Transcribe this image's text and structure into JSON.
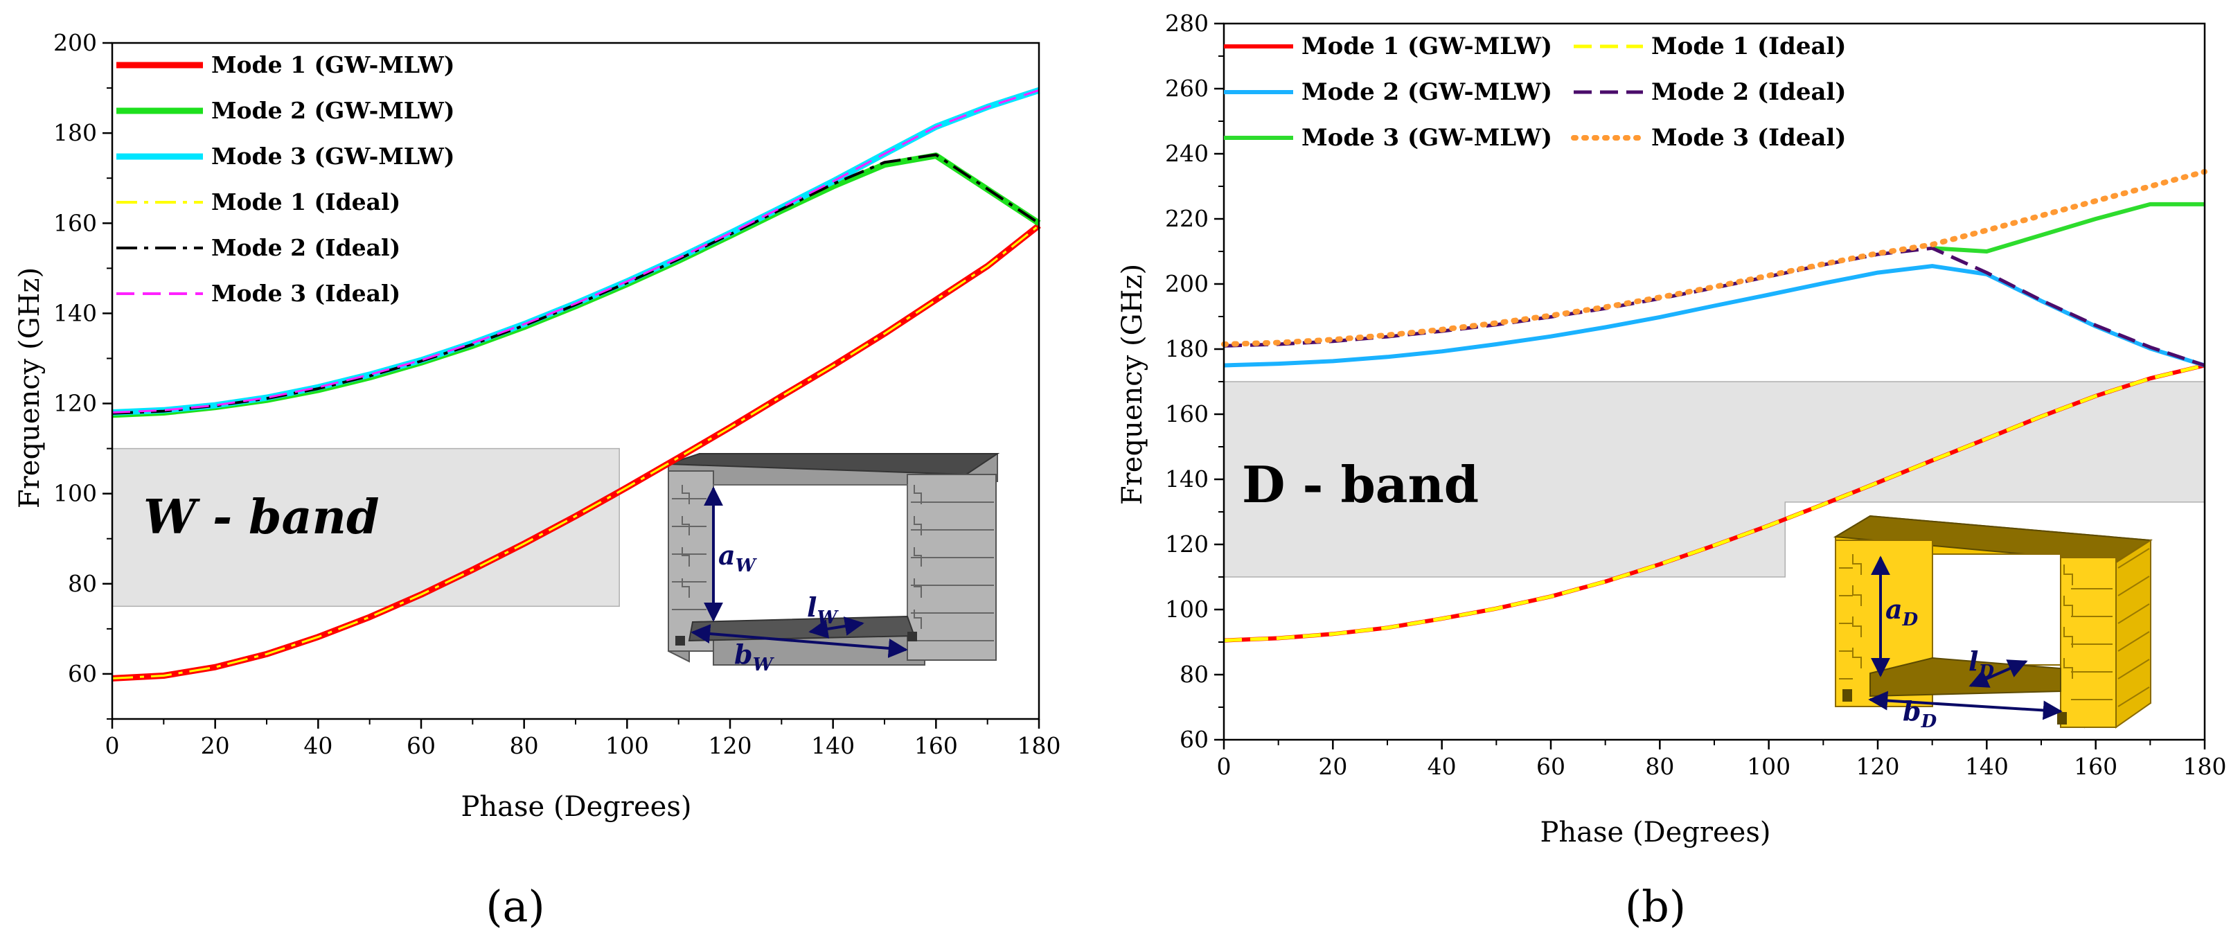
{
  "chart_data": [
    {
      "type": "line",
      "panel_label": "(a)",
      "xlabel": "Phase (Degrees)",
      "ylabel": "Frequency (GHz)",
      "xlim": [
        0,
        180
      ],
      "ylim": [
        50,
        200
      ],
      "xticks": [
        0,
        20,
        40,
        60,
        80,
        100,
        120,
        140,
        160,
        180
      ],
      "yticks": [
        60,
        80,
        100,
        120,
        140,
        160,
        180,
        200
      ],
      "xtick_labels": [
        "0",
        "20",
        "40",
        "60",
        "80",
        "100",
        "120",
        "140",
        "160",
        "180"
      ],
      "ytick_labels": [
        "60",
        "80",
        "100",
        "120",
        "140",
        "160",
        "180",
        "200"
      ],
      "band": {
        "label": "W - band",
        "x_range": [
          0,
          98.5
        ],
        "y_range": [
          75,
          110
        ]
      },
      "legend": {
        "placement": "top-left",
        "columns": 1
      },
      "series": [
        {
          "name": "Mode 1 (GW-MLW)",
          "color": "#ff0000",
          "style": "solid",
          "width": 9,
          "x": [
            0,
            10,
            20,
            30,
            40,
            50,
            60,
            70,
            80,
            90,
            100,
            110,
            120,
            130,
            140,
            150,
            160,
            170,
            180
          ],
          "y": [
            59,
            59.6,
            61.5,
            64.4,
            68.2,
            72.6,
            77.6,
            83.1,
            88.9,
            95.0,
            101.4,
            108,
            114.7,
            121.6,
            128.4,
            135.5,
            143,
            150.5,
            159.5
          ]
        },
        {
          "name": "Mode 2 (GW-MLW)",
          "color": "#1de01d",
          "style": "solid",
          "width": 9,
          "x": [
            0,
            10,
            20,
            30,
            40,
            50,
            60,
            70,
            80,
            90,
            100,
            110,
            120,
            130,
            140,
            150,
            160,
            170,
            180
          ],
          "y": [
            117.5,
            118,
            119.2,
            120.8,
            123,
            125.8,
            129.1,
            132.8,
            137,
            141.6,
            146.5,
            151.7,
            157.2,
            162.8,
            168.2,
            173,
            175,
            167.5,
            160
          ]
        },
        {
          "name": "Mode 3 (GW-MLW)",
          "color": "#00e5ff",
          "style": "solid",
          "width": 9,
          "x": [
            0,
            10,
            20,
            30,
            40,
            50,
            60,
            70,
            80,
            90,
            100,
            110,
            120,
            130,
            140,
            150,
            160,
            170,
            180
          ],
          "y": [
            118,
            118.5,
            119.6,
            121.3,
            123.6,
            126.4,
            129.6,
            133.4,
            137.6,
            142.2,
            147.1,
            152.3,
            157.8,
            163.5,
            169.3,
            175.4,
            181.4,
            185.8,
            189.5
          ]
        },
        {
          "name": "Mode 1 (Ideal)",
          "color": "#ffff00",
          "style": "dashdot",
          "width": 3,
          "x": [
            0,
            10,
            20,
            30,
            40,
            50,
            60,
            70,
            80,
            90,
            100,
            110,
            120,
            130,
            140,
            150,
            160,
            170,
            180
          ],
          "y": [
            59,
            59.6,
            61.5,
            64.4,
            68.2,
            72.6,
            77.6,
            83.1,
            88.9,
            95.0,
            101.4,
            108,
            114.7,
            121.6,
            128.4,
            135.5,
            143,
            150.5,
            159.5
          ]
        },
        {
          "name": "Mode 2 (Ideal)",
          "color": "#000000",
          "style": "dashdot",
          "width": 4,
          "x": [
            0,
            10,
            20,
            30,
            40,
            50,
            60,
            70,
            80,
            90,
            100,
            110,
            120,
            130,
            140,
            150,
            160,
            170,
            180
          ],
          "y": [
            117.8,
            118.3,
            119.5,
            121.1,
            123.3,
            126.1,
            129.4,
            133.1,
            137.3,
            141.9,
            146.8,
            152,
            157.5,
            163.1,
            168.7,
            173.5,
            175.2,
            167.6,
            160
          ]
        },
        {
          "name": "Mode 3 (Ideal)",
          "color": "#ff22ff",
          "style": "dash",
          "width": 3,
          "x": [
            0,
            10,
            20,
            30,
            40,
            50,
            60,
            70,
            80,
            90,
            100,
            110,
            120,
            130,
            140,
            150,
            160,
            170,
            180
          ],
          "y": [
            118,
            118.5,
            119.6,
            121.3,
            123.6,
            126.4,
            129.6,
            133.4,
            137.6,
            142.2,
            147.1,
            152.3,
            157.8,
            163.5,
            169.3,
            175.4,
            181.4,
            185.8,
            189.5
          ]
        }
      ],
      "inset": {
        "dims": [
          "a",
          "b",
          "l"
        ],
        "subscript": "W"
      }
    },
    {
      "type": "line",
      "panel_label": "(b)",
      "xlabel": "Phase (Degrees)",
      "ylabel": "Frequency (GHz)",
      "xlim": [
        0,
        180
      ],
      "ylim": [
        60,
        280
      ],
      "xticks": [
        0,
        20,
        40,
        60,
        80,
        100,
        120,
        140,
        160,
        180
      ],
      "yticks": [
        60,
        80,
        100,
        120,
        140,
        160,
        180,
        200,
        220,
        240,
        260,
        280
      ],
      "xtick_labels": [
        "0",
        "20",
        "40",
        "60",
        "80",
        "100",
        "120",
        "140",
        "160",
        "180"
      ],
      "ytick_labels": [
        "60",
        "80",
        "100",
        "120",
        "140",
        "160",
        "180",
        "200",
        "220",
        "240",
        "260",
        "280"
      ],
      "band": {
        "label": "D - band",
        "x_range": [
          0,
          180
        ],
        "y_range": [
          110,
          170
        ]
      },
      "legend": {
        "placement": "top-left",
        "columns": 2
      },
      "series": [
        {
          "name": "Mode 1 (GW-MLW)",
          "color": "#ff0000",
          "style": "solid",
          "width": 6,
          "x": [
            0,
            10,
            20,
            30,
            40,
            50,
            60,
            70,
            80,
            90,
            100,
            110,
            120,
            130,
            140,
            150,
            160,
            170,
            180
          ],
          "y": [
            90.5,
            91.2,
            92.5,
            94.4,
            97.2,
            100.3,
            104,
            108.6,
            113.9,
            119.7,
            125.8,
            132.3,
            139,
            145.8,
            152.5,
            159.3,
            165.6,
            171,
            175
          ]
        },
        {
          "name": "Mode 2 (GW-MLW)",
          "color": "#1ab2ff",
          "style": "solid",
          "width": 6,
          "x": [
            0,
            10,
            20,
            30,
            40,
            50,
            60,
            70,
            80,
            90,
            100,
            110,
            120,
            130,
            140,
            150,
            160,
            170,
            180
          ],
          "y": [
            175,
            175.5,
            176.3,
            177.6,
            179.3,
            181.5,
            183.9,
            186.7,
            189.8,
            193.3,
            196.7,
            200.2,
            203.5,
            205.5,
            203,
            194.8,
            187,
            180.2,
            175
          ]
        },
        {
          "name": "Mode 3 (GW-MLW)",
          "color": "#2ddc2d",
          "style": "solid",
          "width": 6,
          "x": [
            130,
            140,
            150,
            160,
            170,
            180
          ],
          "y": [
            211,
            210,
            215,
            220,
            224.5,
            224.5
          ]
        },
        {
          "name": "Mode 1 (Ideal)",
          "color": "#ffff00",
          "style": "dash",
          "width": 5,
          "x": [
            0,
            10,
            20,
            30,
            40,
            50,
            60,
            70,
            80,
            90,
            100,
            110,
            120,
            130,
            140,
            150,
            160,
            170,
            180
          ],
          "y": [
            90.5,
            91.2,
            92.5,
            94.4,
            97.2,
            100.3,
            104,
            108.6,
            113.9,
            119.7,
            125.8,
            132.3,
            139,
            145.8,
            152.5,
            159.3,
            165.6,
            171,
            175
          ]
        },
        {
          "name": "Mode 2 (Ideal)",
          "color": "#4b0c6b",
          "style": "dash",
          "width": 5,
          "x": [
            0,
            10,
            20,
            30,
            40,
            50,
            60,
            70,
            80,
            90,
            100,
            110,
            120,
            130,
            140,
            150,
            160,
            170,
            180
          ],
          "y": [
            181,
            181.5,
            182.4,
            183.8,
            185.5,
            187.5,
            189.9,
            192.5,
            195.5,
            198.8,
            202.3,
            205.9,
            209.1,
            211,
            203.5,
            195,
            187.3,
            180.6,
            175
          ]
        },
        {
          "name": "Mode 3 (Ideal)",
          "color": "#ff9933",
          "style": "dot",
          "width": 8,
          "x": [
            0,
            10,
            20,
            30,
            40,
            50,
            60,
            70,
            80,
            90,
            100,
            110,
            120,
            130,
            140,
            150,
            160,
            170,
            180
          ],
          "y": [
            181.5,
            182,
            182.9,
            184.3,
            186,
            188,
            190.3,
            192.9,
            195.9,
            199.1,
            202.6,
            206.1,
            209.4,
            212.1,
            216.5,
            221,
            225.5,
            230,
            234.5
          ]
        }
      ],
      "inset": {
        "dims": [
          "a",
          "b",
          "l"
        ],
        "subscript": "D"
      }
    }
  ]
}
